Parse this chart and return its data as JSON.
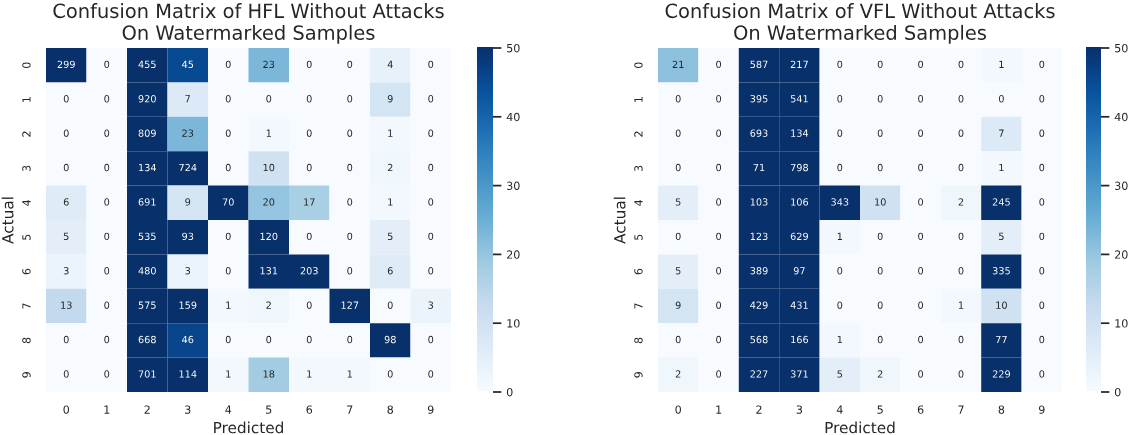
{
  "chart_data": [
    {
      "type": "heatmap",
      "title": "Confusion Matrix of HFL Without Attacks\nOn Watermarked Samples",
      "xlabel": "Predicted",
      "ylabel": "Actual",
      "categories": [
        "0",
        "1",
        "2",
        "3",
        "4",
        "5",
        "6",
        "7",
        "8",
        "9"
      ],
      "y_categories": [
        "0",
        "1",
        "2",
        "3",
        "4",
        "5",
        "6",
        "7",
        "8",
        "9"
      ],
      "cells": [
        [
          299,
          0,
          455,
          45,
          0,
          23,
          0,
          0,
          4,
          0
        ],
        [
          0,
          0,
          920,
          7,
          0,
          0,
          0,
          0,
          9,
          0
        ],
        [
          0,
          0,
          809,
          23,
          0,
          1,
          0,
          0,
          1,
          0
        ],
        [
          0,
          0,
          134,
          724,
          0,
          10,
          0,
          0,
          2,
          0
        ],
        [
          6,
          0,
          691,
          9,
          70,
          20,
          17,
          0,
          1,
          0
        ],
        [
          5,
          0,
          535,
          93,
          0,
          120,
          0,
          0,
          5,
          0
        ],
        [
          3,
          0,
          480,
          3,
          0,
          131,
          203,
          0,
          6,
          0
        ],
        [
          13,
          0,
          575,
          159,
          1,
          2,
          0,
          127,
          0,
          3
        ],
        [
          0,
          0,
          668,
          46,
          0,
          0,
          0,
          0,
          98,
          0
        ],
        [
          0,
          0,
          701,
          114,
          1,
          18,
          1,
          1,
          0,
          0
        ]
      ],
      "clim": [
        0,
        50
      ],
      "cticks": [
        0,
        10,
        20,
        30,
        40,
        50
      ],
      "data_labels": true
    },
    {
      "type": "heatmap",
      "title": "Confusion Matrix of VFL Without Attacks\nOn Watermarked Samples",
      "xlabel": "Predicted",
      "ylabel": "Actual",
      "categories": [
        "0",
        "1",
        "2",
        "3",
        "4",
        "5",
        "6",
        "7",
        "8",
        "9"
      ],
      "y_categories": [
        "0",
        "1",
        "2",
        "3",
        "4",
        "5",
        "6",
        "7",
        "8",
        "9"
      ],
      "cells": [
        [
          21,
          0,
          587,
          217,
          0,
          0,
          0,
          0,
          1,
          0
        ],
        [
          0,
          0,
          395,
          541,
          0,
          0,
          0,
          0,
          0,
          0
        ],
        [
          0,
          0,
          693,
          134,
          0,
          0,
          0,
          0,
          7,
          0
        ],
        [
          0,
          0,
          71,
          798,
          0,
          0,
          0,
          0,
          1,
          0
        ],
        [
          5,
          0,
          103,
          106,
          343,
          10,
          0,
          2,
          245,
          0
        ],
        [
          0,
          0,
          123,
          629,
          1,
          0,
          0,
          0,
          5,
          0
        ],
        [
          5,
          0,
          389,
          97,
          0,
          0,
          0,
          0,
          335,
          0
        ],
        [
          9,
          0,
          429,
          431,
          0,
          0,
          0,
          1,
          10,
          0
        ],
        [
          0,
          0,
          568,
          166,
          1,
          0,
          0,
          0,
          77,
          0
        ],
        [
          2,
          0,
          227,
          371,
          5,
          2,
          0,
          0,
          229,
          0
        ]
      ],
      "clim": [
        0,
        50
      ],
      "cticks": [
        0,
        10,
        20,
        30,
        40,
        50
      ],
      "data_labels": true
    }
  ]
}
